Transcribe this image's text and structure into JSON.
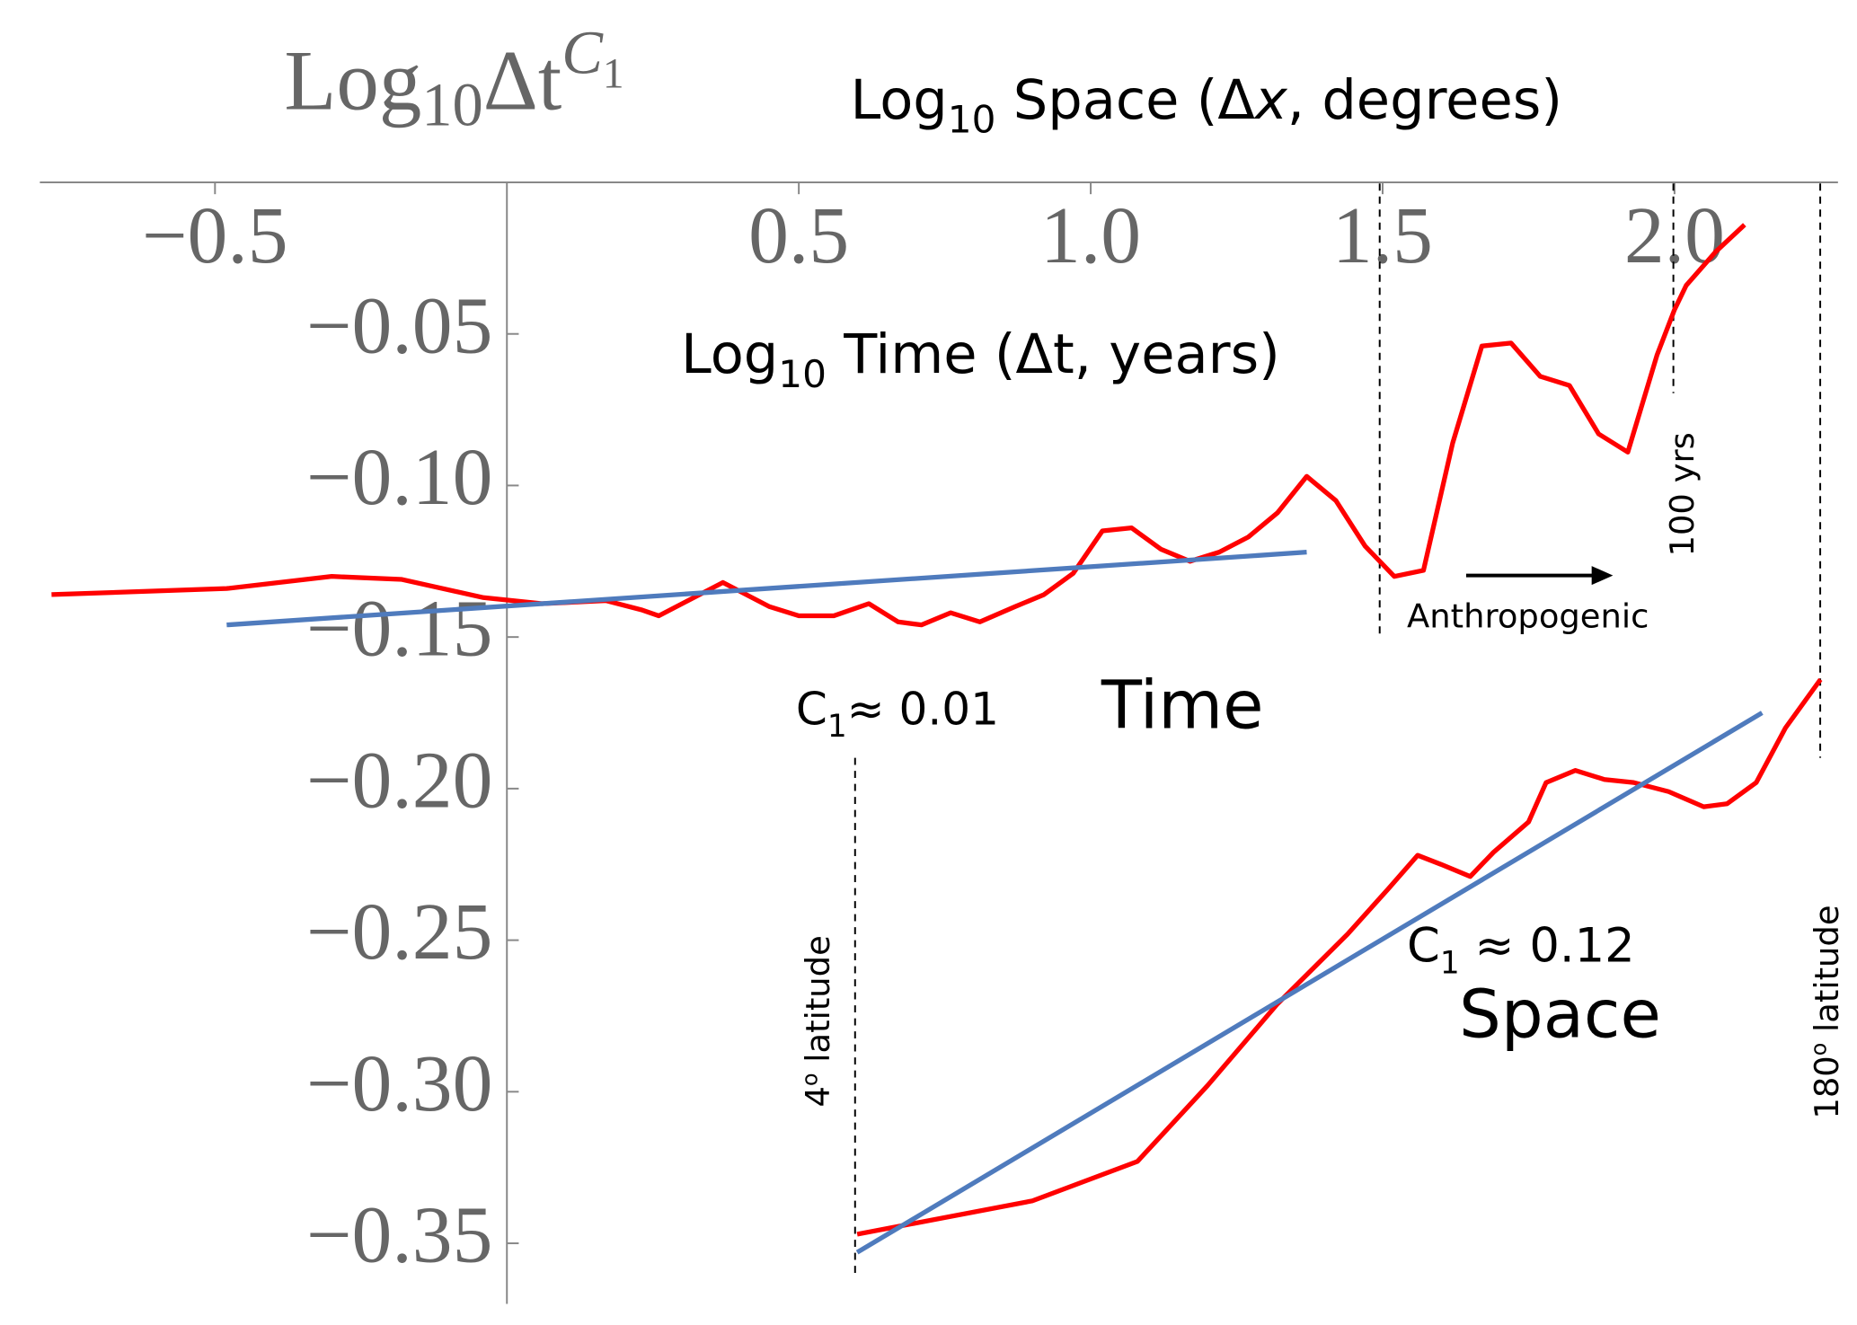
{
  "chart_data": {
    "type": "line",
    "y_label": {
      "base": "Log",
      "sub": "10",
      "main": "Δt",
      "sup": "C",
      "sup_sub": "1"
    },
    "x_label_top": {
      "base": "Log",
      "sub": "10",
      "pre": " Space (Δ",
      "var": "x",
      "post": ", degrees)"
    },
    "x_label": {
      "base": "Log",
      "sub": "10",
      "rest": " Time (Δt, years)"
    },
    "xlim": [
      -0.8,
      2.28
    ],
    "ylim": [
      -0.37,
      0
    ],
    "xticks": [
      {
        "value": -0.5,
        "label": "−0.5"
      },
      0.5,
      {
        "value": 1.0,
        "label": "1.0"
      },
      1.5,
      {
        "value": 2.0,
        "label": "2.0"
      }
    ],
    "yticks": [
      {
        "value": -0.05,
        "label": "−0.05"
      },
      {
        "value": -0.1,
        "label": "−0.10"
      },
      {
        "value": -0.15,
        "label": "−0.15"
      },
      {
        "value": -0.2,
        "label": "−0.20"
      },
      {
        "value": -0.25,
        "label": "−0.25"
      },
      {
        "value": -0.3,
        "label": "−0.30"
      },
      {
        "value": -0.35,
        "label": "−0.35"
      }
    ],
    "series": [
      {
        "color": "#ff0000",
        "x": [
          -0.78,
          -0.48,
          -0.3,
          -0.18,
          -0.04,
          0.06,
          0.17,
          0.23,
          0.26,
          0.31,
          0.37,
          0.45,
          0.5,
          0.56,
          0.62,
          0.67,
          0.71,
          0.76,
          0.81,
          0.87,
          0.92,
          0.97,
          1.02,
          1.07,
          1.12,
          1.17,
          1.22,
          1.27,
          1.32,
          1.37,
          1.42,
          1.47,
          1.52,
          1.57,
          1.62,
          1.67,
          1.72,
          1.77,
          1.82,
          1.87,
          1.92,
          1.97,
          2.0,
          2.02,
          2.07,
          2.12
        ],
        "values": [
          -0.136,
          -0.134,
          -0.13,
          -0.131,
          -0.137,
          -0.139,
          -0.138,
          -0.141,
          -0.143,
          -0.138,
          -0.132,
          -0.14,
          -0.143,
          -0.143,
          -0.139,
          -0.145,
          -0.146,
          -0.142,
          -0.145,
          -0.14,
          -0.136,
          -0.129,
          -0.115,
          -0.114,
          -0.121,
          -0.125,
          -0.122,
          -0.117,
          -0.109,
          -0.097,
          -0.105,
          -0.12,
          -0.13,
          -0.128,
          -0.086,
          -0.054,
          -0.053,
          -0.064,
          -0.067,
          -0.083,
          -0.089,
          -0.057,
          -0.042,
          -0.034,
          -0.023,
          -0.014
        ]
      },
      {
        "color": "#4f7bbd",
        "x": [
          -0.48,
          1.37
        ],
        "values": [
          -0.146,
          -0.122
        ]
      },
      {
        "color": "#ff0000",
        "x": [
          0.6,
          0.9,
          1.08,
          1.2,
          1.32,
          1.44,
          1.51,
          1.56,
          1.6,
          1.65,
          1.69,
          1.75,
          1.78,
          1.83,
          1.88,
          1.93,
          1.99,
          2.05,
          2.09,
          2.14,
          2.19,
          2.25
        ],
        "values": [
          -0.347,
          -0.336,
          -0.323,
          -0.298,
          -0.271,
          -0.248,
          -0.233,
          -0.222,
          -0.225,
          -0.229,
          -0.221,
          -0.211,
          -0.198,
          -0.194,
          -0.197,
          -0.198,
          -0.201,
          -0.206,
          -0.205,
          -0.198,
          -0.18,
          -0.164
        ]
      },
      {
        "color": "#4f7bbd",
        "x": [
          0.6,
          2.15
        ],
        "values": [
          -0.353,
          -0.175
        ]
      }
    ],
    "annotations": {
      "c1_time": {
        "c": "C",
        "sub": "1",
        "rest": "≈ 0.01"
      },
      "time": "Time",
      "anthropogenic": "Anthropogenic",
      "hundred_yrs": "100 yrs",
      "lat4": {
        "num": "4",
        "sup": "o",
        "rest": " latitude"
      },
      "lat180": {
        "num": "180",
        "sup": "o",
        "rest": " latitude"
      },
      "c1_space": {
        "c": "C",
        "sub": "1",
        "rest": " ≈ 0.12"
      },
      "space": "Space"
    }
  }
}
